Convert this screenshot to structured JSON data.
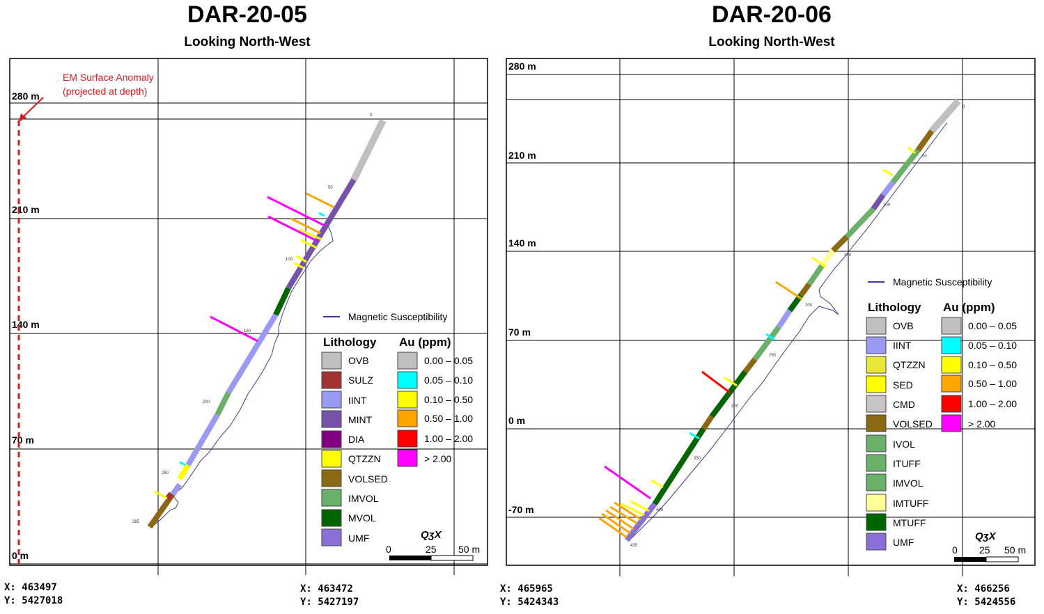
{
  "left": {
    "title": "DAR-20-05",
    "subtitle": "Looking North-West",
    "elevations": [
      "280 m",
      "210 m",
      "140 m",
      "70 m",
      "0 m"
    ],
    "annotation": {
      "line1": "EM Surface Anomaly",
      "line2": "(projected at depth)",
      "color": "#d71920"
    },
    "coords_left": {
      "x": "X: 463497",
      "y": "Y: 5427018"
    },
    "coords_right": {
      "x": "X: 463472",
      "y": "Y: 5427197"
    },
    "depth_labels": [
      "0",
      "50",
      "100",
      "150",
      "200",
      "250",
      "285"
    ],
    "mag_legend": "Magnetic Susceptibility",
    "lithology_header": "Lithology",
    "au_header": "Au (ppm)",
    "lithology": [
      {
        "code": "OVB",
        "color": "#c0c0c0"
      },
      {
        "code": "SULZ",
        "color": "#a53232"
      },
      {
        "code": "IINT",
        "color": "#9a9af5"
      },
      {
        "code": "MINT",
        "color": "#7453a8"
      },
      {
        "code": "DIA",
        "color": "#800080"
      },
      {
        "code": "QTZZN",
        "color": "#ffff00"
      },
      {
        "code": "VOLSED",
        "color": "#8b6914"
      },
      {
        "code": "IMVOL",
        "color": "#6aaf6a"
      },
      {
        "code": "MVOL",
        "color": "#006400"
      },
      {
        "code": "UMF",
        "color": "#8a6fd6"
      }
    ],
    "au": [
      {
        "label": "0.00 – 0.05",
        "color": "#c0c0c0"
      },
      {
        "label": "0.05 – 0.10",
        "color": "#00ffff"
      },
      {
        "label": "0.10 – 0.50",
        "color": "#ffff00"
      },
      {
        "label": "0.50 – 1.00",
        "color": "#ffa500"
      },
      {
        "label": "1.00 – 2.00",
        "color": "#ff0000"
      },
      {
        "label": "> 2.00",
        "color": "#ff00ff"
      }
    ],
    "scale": {
      "a": "0",
      "b": "25",
      "c": "50 m"
    },
    "logo": "QʒX"
  },
  "right": {
    "title": "DAR-20-06",
    "subtitle": "Looking North-West",
    "elevations": [
      "280 m",
      "210 m",
      "140 m",
      "70 m",
      "0 m",
      "-70 m"
    ],
    "coords_left": {
      "x": "X: 465965",
      "y": "Y: 5424343"
    },
    "coords_right": {
      "x": "X: 466256",
      "y": "Y: 5424556"
    },
    "depth_labels": [
      "0",
      "50",
      "100",
      "150",
      "200",
      "250",
      "300",
      "350",
      "400",
      "435"
    ],
    "mag_legend": "Magnetic Susceptibility",
    "lithology_header": "Lithology",
    "au_header": "Au (ppm)",
    "lithology": [
      {
        "code": "OVB",
        "color": "#c0c0c0"
      },
      {
        "code": "IINT",
        "color": "#9a9af5"
      },
      {
        "code": "QTZZN",
        "color": "#e8e83a"
      },
      {
        "code": "SED",
        "color": "#ffff00"
      },
      {
        "code": "CMD",
        "color": "#c8c4c8"
      },
      {
        "code": "VOLSED",
        "color": "#8b6914"
      },
      {
        "code": "IVOL",
        "color": "#6aaf6a"
      },
      {
        "code": "ITUFF",
        "color": "#6aaf6a"
      },
      {
        "code": "IMVOL",
        "color": "#6aaf6a"
      },
      {
        "code": "IMTUFF",
        "color": "#ffff99"
      },
      {
        "code": "MTUFF",
        "color": "#006400"
      },
      {
        "code": "UMF",
        "color": "#8a6fd6"
      }
    ],
    "au": [
      {
        "label": "0.00 – 0.05",
        "color": "#c0c0c0"
      },
      {
        "label": "0.05 – 0.10",
        "color": "#00ffff"
      },
      {
        "label": "0.10 – 0.50",
        "color": "#ffff00"
      },
      {
        "label": "0.50 – 1.00",
        "color": "#ffa500"
      },
      {
        "label": "1.00 – 2.00",
        "color": "#ff0000"
      },
      {
        "label": "> 2.00",
        "color": "#ff00ff"
      }
    ],
    "scale": {
      "a": "0",
      "b": "25",
      "c": "50 m"
    },
    "logo": "QʒX"
  },
  "mag_color": "#3a3aa0",
  "grid_color": "#000000"
}
